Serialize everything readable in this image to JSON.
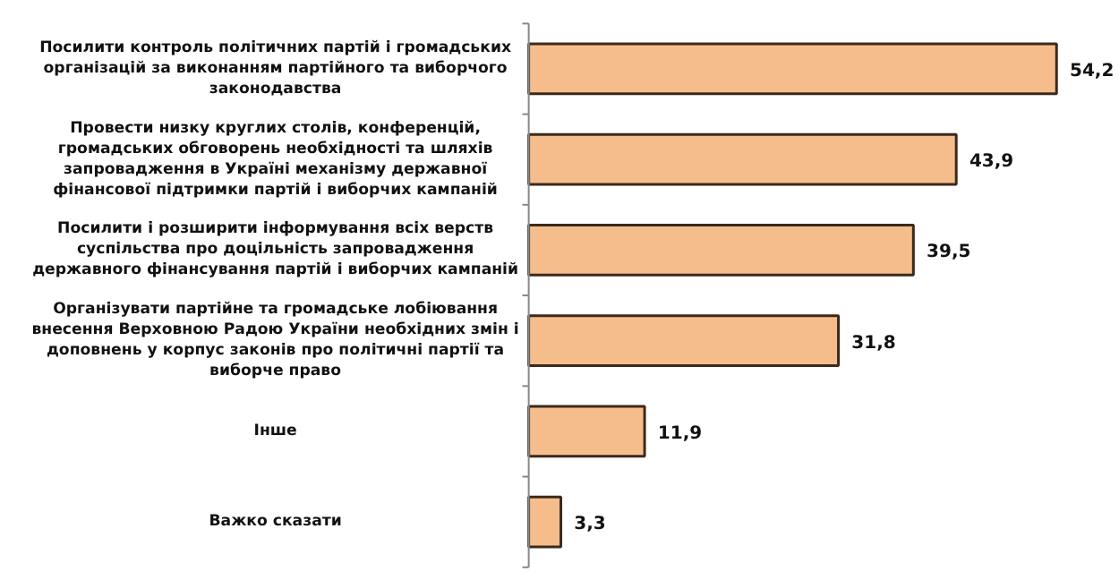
{
  "chart_data": {
    "type": "bar",
    "orientation": "horizontal",
    "categories": [
      "Посилити контроль політичних партій і громадських організацій за виконанням партійного та виборчого законодавства",
      "Провести низку круглих столів, конференцій, громадських обговорень необхідності та шляхів запровадження в Україні механізму державної фінансової підтримки партій і виборчих кампаній",
      "Посилити і розширити інформування всіх верств суспільства про доцільність запровадження державного фінансування партій і виборчих кампаній",
      "Організувати партійне та громадське лобіювання внесення Верховною Радою України необхідних змін і доповнень у корпус законів про політичні партії та виборче право",
      "Інше",
      "Важко сказати"
    ],
    "values": [
      54.2,
      43.9,
      39.5,
      31.8,
      11.9,
      3.3
    ],
    "value_labels": [
      "54,2",
      "43,9",
      "39,5",
      "31,8",
      "11,9",
      "3,3"
    ],
    "color": "#f6bd8c"
  }
}
